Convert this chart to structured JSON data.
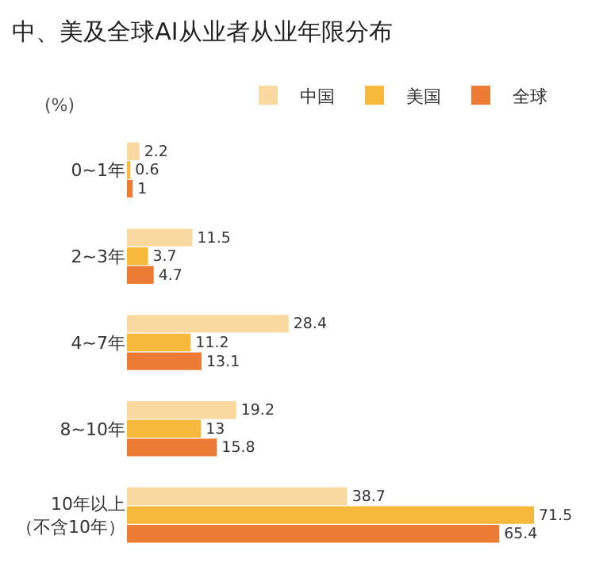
{
  "chart_data": {
    "type": "bar",
    "orientation": "horizontal",
    "title": "中、美及全球AI从业者从业年限分布",
    "xlabel": "(%)",
    "categories": [
      "0~1年",
      "2~3年",
      "4~7年",
      "8~10年",
      "10年以上（不含10年）"
    ],
    "series": [
      {
        "name": "中国",
        "color": "#fad9a0",
        "values": [
          2.2,
          11.5,
          28.4,
          19.2,
          38.7
        ]
      },
      {
        "name": "美国",
        "color": "#f6b93b",
        "values": [
          0.6,
          3.7,
          11.2,
          13,
          71.5
        ]
      },
      {
        "name": "全球",
        "color": "#ec7c35",
        "values": [
          1,
          4.7,
          13.1,
          15.8,
          65.4
        ]
      }
    ],
    "data_labels": true,
    "legend": "top right",
    "grid": false,
    "tick_labels": "y"
  }
}
